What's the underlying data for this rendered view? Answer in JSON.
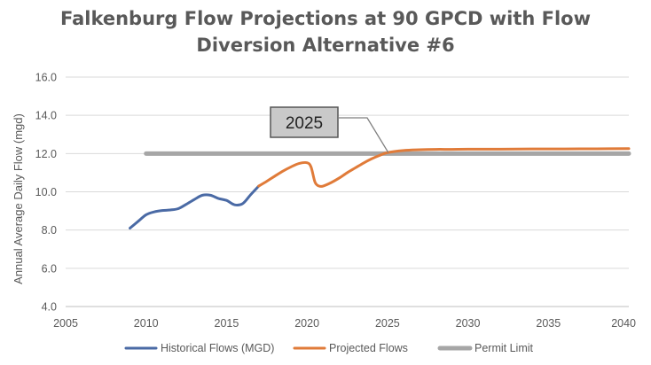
{
  "chart_data": {
    "type": "line",
    "title_lines": [
      "Falkenburg Flow Projections at 90 GPCD with Flow",
      "Diversion Alternative #6"
    ],
    "xlabel": "",
    "ylabel": "Annual Average Daily Flow (mgd)",
    "xlim": [
      2005,
      2040
    ],
    "ylim": [
      4.0,
      16.0
    ],
    "x_ticks": [
      "2005",
      "2010",
      "2015",
      "2020",
      "2025",
      "2030",
      "2035",
      "2040"
    ],
    "y_ticks": [
      "4.0",
      "6.0",
      "8.0",
      "10.0",
      "12.0",
      "14.0",
      "16.0"
    ],
    "grid": "horizontal",
    "legend_position": "bottom",
    "series": [
      {
        "name": "Historical Flows (MGD)",
        "color": "#4a6aa5",
        "x": [
          2009,
          2009.5,
          2010,
          2010.5,
          2011,
          2011.5,
          2012,
          2012.5,
          2013,
          2013.5,
          2014,
          2014.5,
          2015,
          2015.5,
          2016,
          2016.5,
          2017
        ],
        "y": [
          8.1,
          8.45,
          8.8,
          8.95,
          9.02,
          9.05,
          9.12,
          9.35,
          9.6,
          9.82,
          9.82,
          9.65,
          9.55,
          9.32,
          9.38,
          9.85,
          10.3
        ]
      },
      {
        "name": "Projected Flows",
        "color": "#e07b39",
        "x": [
          2017,
          2017.5,
          2018,
          2018.5,
          2019,
          2019.5,
          2020,
          2020.25,
          2020.5,
          2020.75,
          2021,
          2021.5,
          2022,
          2022.5,
          2023,
          2023.5,
          2024,
          2024.5,
          2025,
          2026,
          2027,
          2028,
          2029,
          2030,
          2032,
          2034,
          2036,
          2038,
          2040
        ],
        "y": [
          10.3,
          10.55,
          10.82,
          11.08,
          11.3,
          11.48,
          11.52,
          11.3,
          10.5,
          10.3,
          10.3,
          10.48,
          10.72,
          11.0,
          11.25,
          11.5,
          11.72,
          11.9,
          12.05,
          12.16,
          12.2,
          12.22,
          12.22,
          12.23,
          12.23,
          12.24,
          12.24,
          12.25,
          12.26
        ]
      },
      {
        "name": "Permit Limit",
        "color": "#a6a6a6",
        "x": [
          2010,
          2040
        ],
        "y": [
          12.0,
          12.0
        ]
      }
    ],
    "annotations": [
      {
        "text": "2025",
        "x": 2025,
        "y": 12.0
      }
    ]
  }
}
